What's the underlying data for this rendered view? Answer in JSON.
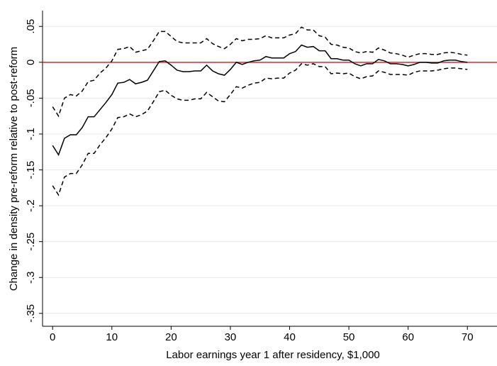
{
  "chart_data": {
    "type": "line",
    "xlabel": "Labor earnings year 1 after residency, $1,000",
    "ylabel": "Change in density pre-reform relative to post-reform",
    "x": [
      0,
      1,
      2,
      3,
      4,
      5,
      6,
      7,
      8,
      9,
      10,
      11,
      12,
      13,
      14,
      15,
      16,
      17,
      18,
      19,
      20,
      21,
      22,
      23,
      24,
      25,
      26,
      27,
      28,
      29,
      30,
      31,
      32,
      33,
      34,
      35,
      36,
      37,
      38,
      39,
      40,
      41,
      42,
      43,
      44,
      45,
      46,
      47,
      48,
      49,
      50,
      51,
      52,
      53,
      54,
      55,
      56,
      57,
      58,
      59,
      60,
      61,
      62,
      63,
      64,
      65,
      66,
      67,
      68,
      69,
      70
    ],
    "series": [
      {
        "color": "#000000",
        "dashed": false,
        "values": [
          -0.116,
          -0.129,
          -0.106,
          -0.101,
          -0.101,
          -0.091,
          -0.076,
          -0.076,
          -0.066,
          -0.056,
          -0.045,
          -0.029,
          -0.028,
          -0.024,
          -0.03,
          -0.028,
          -0.025,
          -0.012,
          0.001,
          0.002,
          -0.004,
          -0.011,
          -0.013,
          -0.013,
          -0.012,
          -0.012,
          -0.004,
          -0.012,
          -0.016,
          -0.018,
          -0.01,
          0,
          -0.003,
          0,
          0.002,
          0.003,
          0.008,
          0.006,
          0.006,
          0.006,
          0.012,
          0.015,
          0.024,
          0.021,
          0.022,
          0.016,
          0.016,
          0.005,
          0.005,
          0.003,
          0.003,
          -0.002,
          -0.005,
          -0.002,
          -0.002,
          0.004,
          0.002,
          -0.002,
          -0.002,
          -0.003,
          -0.005,
          -0.003,
          0,
          0,
          -0.001,
          -0.001,
          0.002,
          0.003,
          0.003,
          0.001,
          0
        ]
      },
      {
        "color": "#000000",
        "dashed": true,
        "values": [
          -0.062,
          -0.075,
          -0.05,
          -0.045,
          -0.047,
          -0.04,
          -0.027,
          -0.025,
          -0.015,
          -0.008,
          0.002,
          0.018,
          0.019,
          0.022,
          0.014,
          0.016,
          0.018,
          0.03,
          0.043,
          0.043,
          0.036,
          0.029,
          0.027,
          0.027,
          0.027,
          0.027,
          0.033,
          0.026,
          0.022,
          0.019,
          0.025,
          0.033,
          0.03,
          0.032,
          0.032,
          0.033,
          0.037,
          0.034,
          0.034,
          0.034,
          0.038,
          0.04,
          0.049,
          0.045,
          0.045,
          0.037,
          0.035,
          0.025,
          0.024,
          0.021,
          0.02,
          0.015,
          0.013,
          0.015,
          0.014,
          0.02,
          0.017,
          0.013,
          0.012,
          0.01,
          0.007,
          0.01,
          0.012,
          0.012,
          0.011,
          0.011,
          0.013,
          0.014,
          0.013,
          0.011,
          0.01
        ]
      },
      {
        "color": "#000000",
        "dashed": true,
        "values": [
          -0.172,
          -0.185,
          -0.16,
          -0.155,
          -0.155,
          -0.143,
          -0.127,
          -0.127,
          -0.115,
          -0.105,
          -0.093,
          -0.077,
          -0.076,
          -0.072,
          -0.076,
          -0.073,
          -0.068,
          -0.055,
          -0.041,
          -0.039,
          -0.046,
          -0.051,
          -0.053,
          -0.053,
          -0.051,
          -0.051,
          -0.042,
          -0.048,
          -0.054,
          -0.055,
          -0.045,
          -0.034,
          -0.036,
          -0.032,
          -0.029,
          -0.028,
          -0.022,
          -0.023,
          -0.022,
          -0.022,
          -0.015,
          -0.011,
          -0.002,
          -0.004,
          -0.002,
          -0.006,
          -0.006,
          -0.016,
          -0.015,
          -0.016,
          -0.015,
          -0.02,
          -0.023,
          -0.02,
          -0.019,
          -0.012,
          -0.014,
          -0.017,
          -0.017,
          -0.017,
          -0.018,
          -0.014,
          -0.012,
          -0.012,
          -0.012,
          -0.011,
          -0.009,
          -0.008,
          -0.008,
          -0.009,
          -0.01
        ]
      }
    ],
    "reference_line": {
      "value": 0,
      "color": "#e8212b"
    },
    "xlim": [
      -1.7,
      75
    ],
    "xticks": [
      0,
      10,
      20,
      30,
      40,
      50,
      60,
      70
    ],
    "ylim": [
      -0.368,
      0.072
    ],
    "yticks": [
      {
        "value": 0.05,
        "label": ".05"
      },
      0,
      {
        "value": -0.05,
        "label": "-.05"
      },
      {
        "value": -0.1,
        "label": "-.1"
      },
      {
        "value": -0.15,
        "label": "-.15"
      },
      {
        "value": -0.2,
        "label": "-.2"
      },
      {
        "value": -0.25,
        "label": "-.25"
      },
      {
        "value": -0.3,
        "label": "-.3"
      },
      {
        "value": -0.35,
        "label": "-.35"
      }
    ],
    "grid": true
  }
}
